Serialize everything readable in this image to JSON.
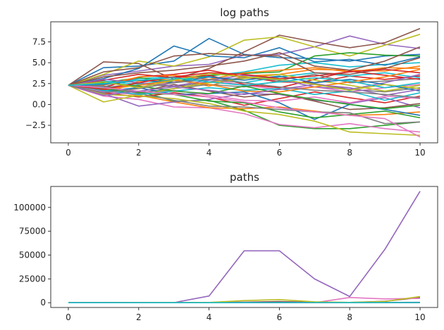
{
  "chart_data": [
    {
      "type": "line",
      "title": "log paths",
      "xlabel": "",
      "ylabel": "",
      "xlim": [
        -0.5,
        10.5
      ],
      "ylim": [
        -4.6,
        9.9
      ],
      "x_ticks": [
        0,
        2,
        4,
        6,
        8,
        10
      ],
      "x_tick_labels": [
        "0",
        "2",
        "4",
        "6",
        "8",
        "10"
      ],
      "y_ticks": [
        -2.5,
        0.0,
        2.5,
        5.0,
        7.5
      ],
      "y_tick_labels": [
        "−2.5",
        "0.0",
        "2.5",
        "5.0",
        "7.5"
      ],
      "grid": false,
      "x": [
        0,
        1,
        2,
        3,
        4,
        5,
        6,
        7,
        8,
        9,
        10
      ],
      "series": [
        {
          "color": "#1f77b4",
          "values": [
            2.3,
            4.4,
            4.6,
            5.2,
            7.9,
            6.0,
            5.6,
            5.5,
            5.2,
            5.8,
            6.0
          ]
        },
        {
          "color": "#ff7f0e",
          "values": [
            2.3,
            1.2,
            2.8,
            3.0,
            2.2,
            3.4,
            3.6,
            4.2,
            4.1,
            4.0,
            4.6
          ]
        },
        {
          "color": "#2ca02c",
          "values": [
            2.3,
            1.5,
            1.6,
            0.4,
            0.5,
            -0.7,
            -2.5,
            -2.9,
            -2.9,
            -2.5,
            -2.1
          ]
        },
        {
          "color": "#d62728",
          "values": [
            2.3,
            1.4,
            0.9,
            1.4,
            0.9,
            -0.1,
            0.7,
            1.5,
            0.8,
            0.2,
            1.0
          ]
        },
        {
          "color": "#9467bd",
          "values": [
            2.3,
            3.5,
            4.0,
            4.6,
            4.8,
            5.9,
            6.0,
            6.9,
            8.2,
            7.2,
            6.7
          ]
        },
        {
          "color": "#8c564b",
          "values": [
            2.3,
            5.1,
            4.9,
            3.0,
            4.3,
            6.3,
            8.3,
            7.5,
            6.8,
            7.4,
            9.1
          ]
        },
        {
          "color": "#e377c2",
          "values": [
            2.3,
            1.0,
            0.6,
            -0.3,
            -0.4,
            -1.1,
            -2.4,
            -2.8,
            -2.3,
            -2.9,
            -3.3
          ]
        },
        {
          "color": "#7f7f7f",
          "values": [
            2.3,
            2.0,
            2.5,
            2.1,
            2.7,
            3.2,
            2.9,
            3.6,
            2.6,
            2.8,
            3.1
          ]
        },
        {
          "color": "#bcbd22",
          "values": [
            2.3,
            3.6,
            5.2,
            4.6,
            5.7,
            7.7,
            8.1,
            6.9,
            5.8,
            7.1,
            8.4
          ]
        },
        {
          "color": "#17becf",
          "values": [
            2.3,
            2.1,
            3.1,
            3.3,
            3.4,
            3.9,
            4.7,
            5.0,
            4.5,
            4.8,
            5.0
          ]
        },
        {
          "color": "#1f77b4",
          "values": [
            2.3,
            3.1,
            4.3,
            7.0,
            5.8,
            5.6,
            6.8,
            5.1,
            5.4,
            4.7,
            5.7
          ]
        },
        {
          "color": "#ff7f0e",
          "values": [
            2.3,
            1.7,
            1.1,
            0.3,
            -0.4,
            -0.5,
            -0.3,
            -0.8,
            -1.3,
            -1.2,
            -0.9
          ]
        },
        {
          "color": "#2ca02c",
          "values": [
            2.3,
            2.6,
            3.2,
            2.7,
            3.5,
            3.7,
            3.9,
            5.8,
            6.2,
            5.9,
            5.8
          ]
        },
        {
          "color": "#d62728",
          "values": [
            2.3,
            2.0,
            3.3,
            3.6,
            4.1,
            3.3,
            2.7,
            2.6,
            3.4,
            3.0,
            3.4
          ]
        },
        {
          "color": "#9467bd",
          "values": [
            2.3,
            1.3,
            -0.2,
            0.3,
            0.6,
            1.3,
            1.2,
            0.5,
            0.1,
            0.8,
            -0.4
          ]
        },
        {
          "color": "#8c564b",
          "values": [
            2.3,
            1.8,
            1.5,
            2.4,
            1.6,
            0.9,
            1.3,
            0.4,
            -0.6,
            -0.4,
            0.1
          ]
        },
        {
          "color": "#e377c2",
          "values": [
            2.3,
            2.6,
            2.1,
            2.7,
            3.0,
            2.3,
            1.8,
            2.1,
            1.5,
            2.0,
            2.4
          ]
        },
        {
          "color": "#7f7f7f",
          "values": [
            2.3,
            1.9,
            1.4,
            1.9,
            2.4,
            2.1,
            2.8,
            2.5,
            1.8,
            1.5,
            2.0
          ]
        },
        {
          "color": "#bcbd22",
          "values": [
            2.3,
            1.2,
            1.0,
            0.7,
            0.1,
            -0.8,
            -1.2,
            -2.0,
            -3.3,
            -3.5,
            -3.7
          ]
        },
        {
          "color": "#17becf",
          "values": [
            2.3,
            2.8,
            2.4,
            3.0,
            3.3,
            2.6,
            3.3,
            3.8,
            3.4,
            3.8,
            3.2
          ]
        },
        {
          "color": "#1f77b4",
          "values": [
            2.3,
            1.6,
            2.0,
            1.2,
            1.3,
            1.5,
            0.2,
            -1.8,
            0.0,
            -0.6,
            -1.3
          ]
        },
        {
          "color": "#ff7f0e",
          "values": [
            2.3,
            2.3,
            3.3,
            3.5,
            3.0,
            3.8,
            4.1,
            4.4,
            3.9,
            4.4,
            4.3
          ]
        },
        {
          "color": "#2ca02c",
          "values": [
            2.3,
            1.9,
            1.4,
            1.2,
            0.4,
            0.2,
            -0.9,
            -1.6,
            -1.2,
            -0.8,
            -1.6
          ]
        },
        {
          "color": "#d62728",
          "values": [
            2.3,
            2.9,
            3.6,
            3.2,
            3.5,
            2.4,
            2.0,
            3.0,
            4.0,
            3.5,
            3.0
          ]
        },
        {
          "color": "#9467bd",
          "values": [
            2.3,
            3.0,
            2.6,
            2.2,
            2.9,
            3.5,
            3.0,
            2.1,
            1.8,
            2.6,
            3.6
          ]
        },
        {
          "color": "#8c564b",
          "values": [
            2.3,
            3.9,
            4.4,
            5.8,
            6.1,
            5.9,
            5.8,
            3.8,
            3.6,
            4.3,
            5.6
          ]
        },
        {
          "color": "#e377c2",
          "values": [
            2.3,
            1.5,
            1.2,
            1.7,
            1.1,
            0.5,
            0.4,
            0.9,
            0.2,
            1.0,
            0.7
          ]
        },
        {
          "color": "#7f7f7f",
          "values": [
            2.3,
            2.2,
            1.3,
            0.5,
            -0.2,
            -0.3,
            -0.6,
            -0.9,
            -1.0,
            -2.3,
            -2.1
          ]
        },
        {
          "color": "#bcbd22",
          "values": [
            2.3,
            0.3,
            1.1,
            1.9,
            2.6,
            3.1,
            3.6,
            2.9,
            2.3,
            1.6,
            2.3
          ]
        },
        {
          "color": "#17becf",
          "values": [
            2.3,
            1.7,
            1.2,
            1.6,
            2.0,
            1.7,
            1.9,
            1.2,
            1.6,
            0.5,
            1.4
          ]
        },
        {
          "color": "#1f77b4",
          "values": [
            2.3,
            2.4,
            2.9,
            2.6,
            3.3,
            2.9,
            3.4,
            2.6,
            3.0,
            2.4,
            1.6
          ]
        },
        {
          "color": "#ff7f0e",
          "values": [
            2.3,
            1.8,
            2.3,
            2.9,
            2.4,
            1.6,
            1.5,
            2.1,
            2.7,
            3.3,
            4.2
          ]
        },
        {
          "color": "#2ca02c",
          "values": [
            2.3,
            2.6,
            2.2,
            1.6,
            1.3,
            2.2,
            1.3,
            0.6,
            0.0,
            -0.5,
            -0.1
          ]
        },
        {
          "color": "#d62728",
          "values": [
            2.3,
            1.8,
            2.6,
            3.3,
            3.8,
            3.6,
            3.1,
            3.4,
            3.9,
            4.2,
            3.8
          ]
        },
        {
          "color": "#9467bd",
          "values": [
            2.3,
            1.1,
            1.6,
            2.1,
            1.7,
            1.2,
            1.8,
            2.4,
            2.0,
            1.1,
            1.8
          ]
        },
        {
          "color": "#8c564b",
          "values": [
            2.3,
            3.3,
            3.8,
            4.1,
            4.6,
            5.2,
            6.2,
            4.6,
            4.1,
            5.2,
            6.9
          ]
        },
        {
          "color": "#e377c2",
          "values": [
            2.3,
            2.0,
            1.6,
            1.2,
            0.9,
            0.3,
            -0.4,
            -0.9,
            -1.3,
            -1.7,
            -3.9
          ]
        },
        {
          "color": "#7f7f7f",
          "values": [
            2.3,
            1.4,
            1.9,
            2.6,
            3.0,
            2.6,
            2.1,
            1.7,
            1.5,
            1.2,
            0.8
          ]
        },
        {
          "color": "#bcbd22",
          "values": [
            2.3,
            2.7,
            2.0,
            2.9,
            3.7,
            3.3,
            3.0,
            2.4,
            1.7,
            2.4,
            1.9
          ]
        },
        {
          "color": "#17becf",
          "values": [
            2.3,
            2.5,
            2.9,
            3.2,
            2.7,
            2.3,
            2.7,
            3.2,
            2.8,
            2.0,
            2.6
          ]
        }
      ]
    },
    {
      "type": "line",
      "title": "paths",
      "xlabel": "",
      "ylabel": "",
      "xlim": [
        -0.5,
        10.5
      ],
      "ylim": [
        -5000,
        122000
      ],
      "x_ticks": [
        0,
        2,
        4,
        6,
        8,
        10
      ],
      "x_tick_labels": [
        "0",
        "2",
        "4",
        "6",
        "8",
        "10"
      ],
      "y_ticks": [
        0,
        25000,
        50000,
        75000,
        100000
      ],
      "y_tick_labels": [
        "0",
        "25000",
        "50000",
        "75000",
        "100000"
      ],
      "grid": false,
      "x": [
        0,
        1,
        2,
        3,
        4,
        5,
        6,
        7,
        8,
        9,
        10
      ],
      "series": [
        {
          "color": "#1f77b4",
          "values": [
            10,
            80,
            100,
            180,
            300,
            400,
            300,
            250,
            200,
            330,
            400
          ]
        },
        {
          "color": "#ff7f0e",
          "values": [
            10,
            5,
            20,
            20,
            10,
            30,
            40,
            70,
            60,
            60,
            100
          ]
        },
        {
          "color": "#2ca02c",
          "values": [
            10,
            5,
            5,
            2,
            2,
            1,
            0,
            0,
            0,
            0,
            0
          ]
        },
        {
          "color": "#d62728",
          "values": [
            10,
            5,
            3,
            5,
            3,
            1,
            2,
            5,
            3,
            1,
            3
          ]
        },
        {
          "color": "#9467bd",
          "values": [
            10,
            30,
            60,
            100,
            7000,
            54500,
            54500,
            25000,
            6500,
            56000,
            117000
          ]
        },
        {
          "color": "#8c564b",
          "values": [
            10,
            160,
            130,
            20,
            80,
            600,
            1200,
            500,
            300,
            1500,
            5500
          ]
        },
        {
          "color": "#e377c2",
          "values": [
            10,
            3,
            2,
            1,
            1,
            0,
            0,
            0,
            5500,
            4000,
            4500
          ]
        },
        {
          "color": "#7f7f7f",
          "values": [
            10,
            8,
            12,
            8,
            15,
            25,
            20,
            40,
            15,
            20,
            25
          ]
        },
        {
          "color": "#bcbd22",
          "values": [
            10,
            40,
            180,
            100,
            300,
            2200,
            3300,
            1000,
            350,
            1300,
            6500
          ]
        },
        {
          "color": "#17becf",
          "values": [
            10,
            8,
            22,
            27,
            30,
            50,
            110,
            150,
            90,
            120,
            150
          ]
        }
      ]
    }
  ]
}
